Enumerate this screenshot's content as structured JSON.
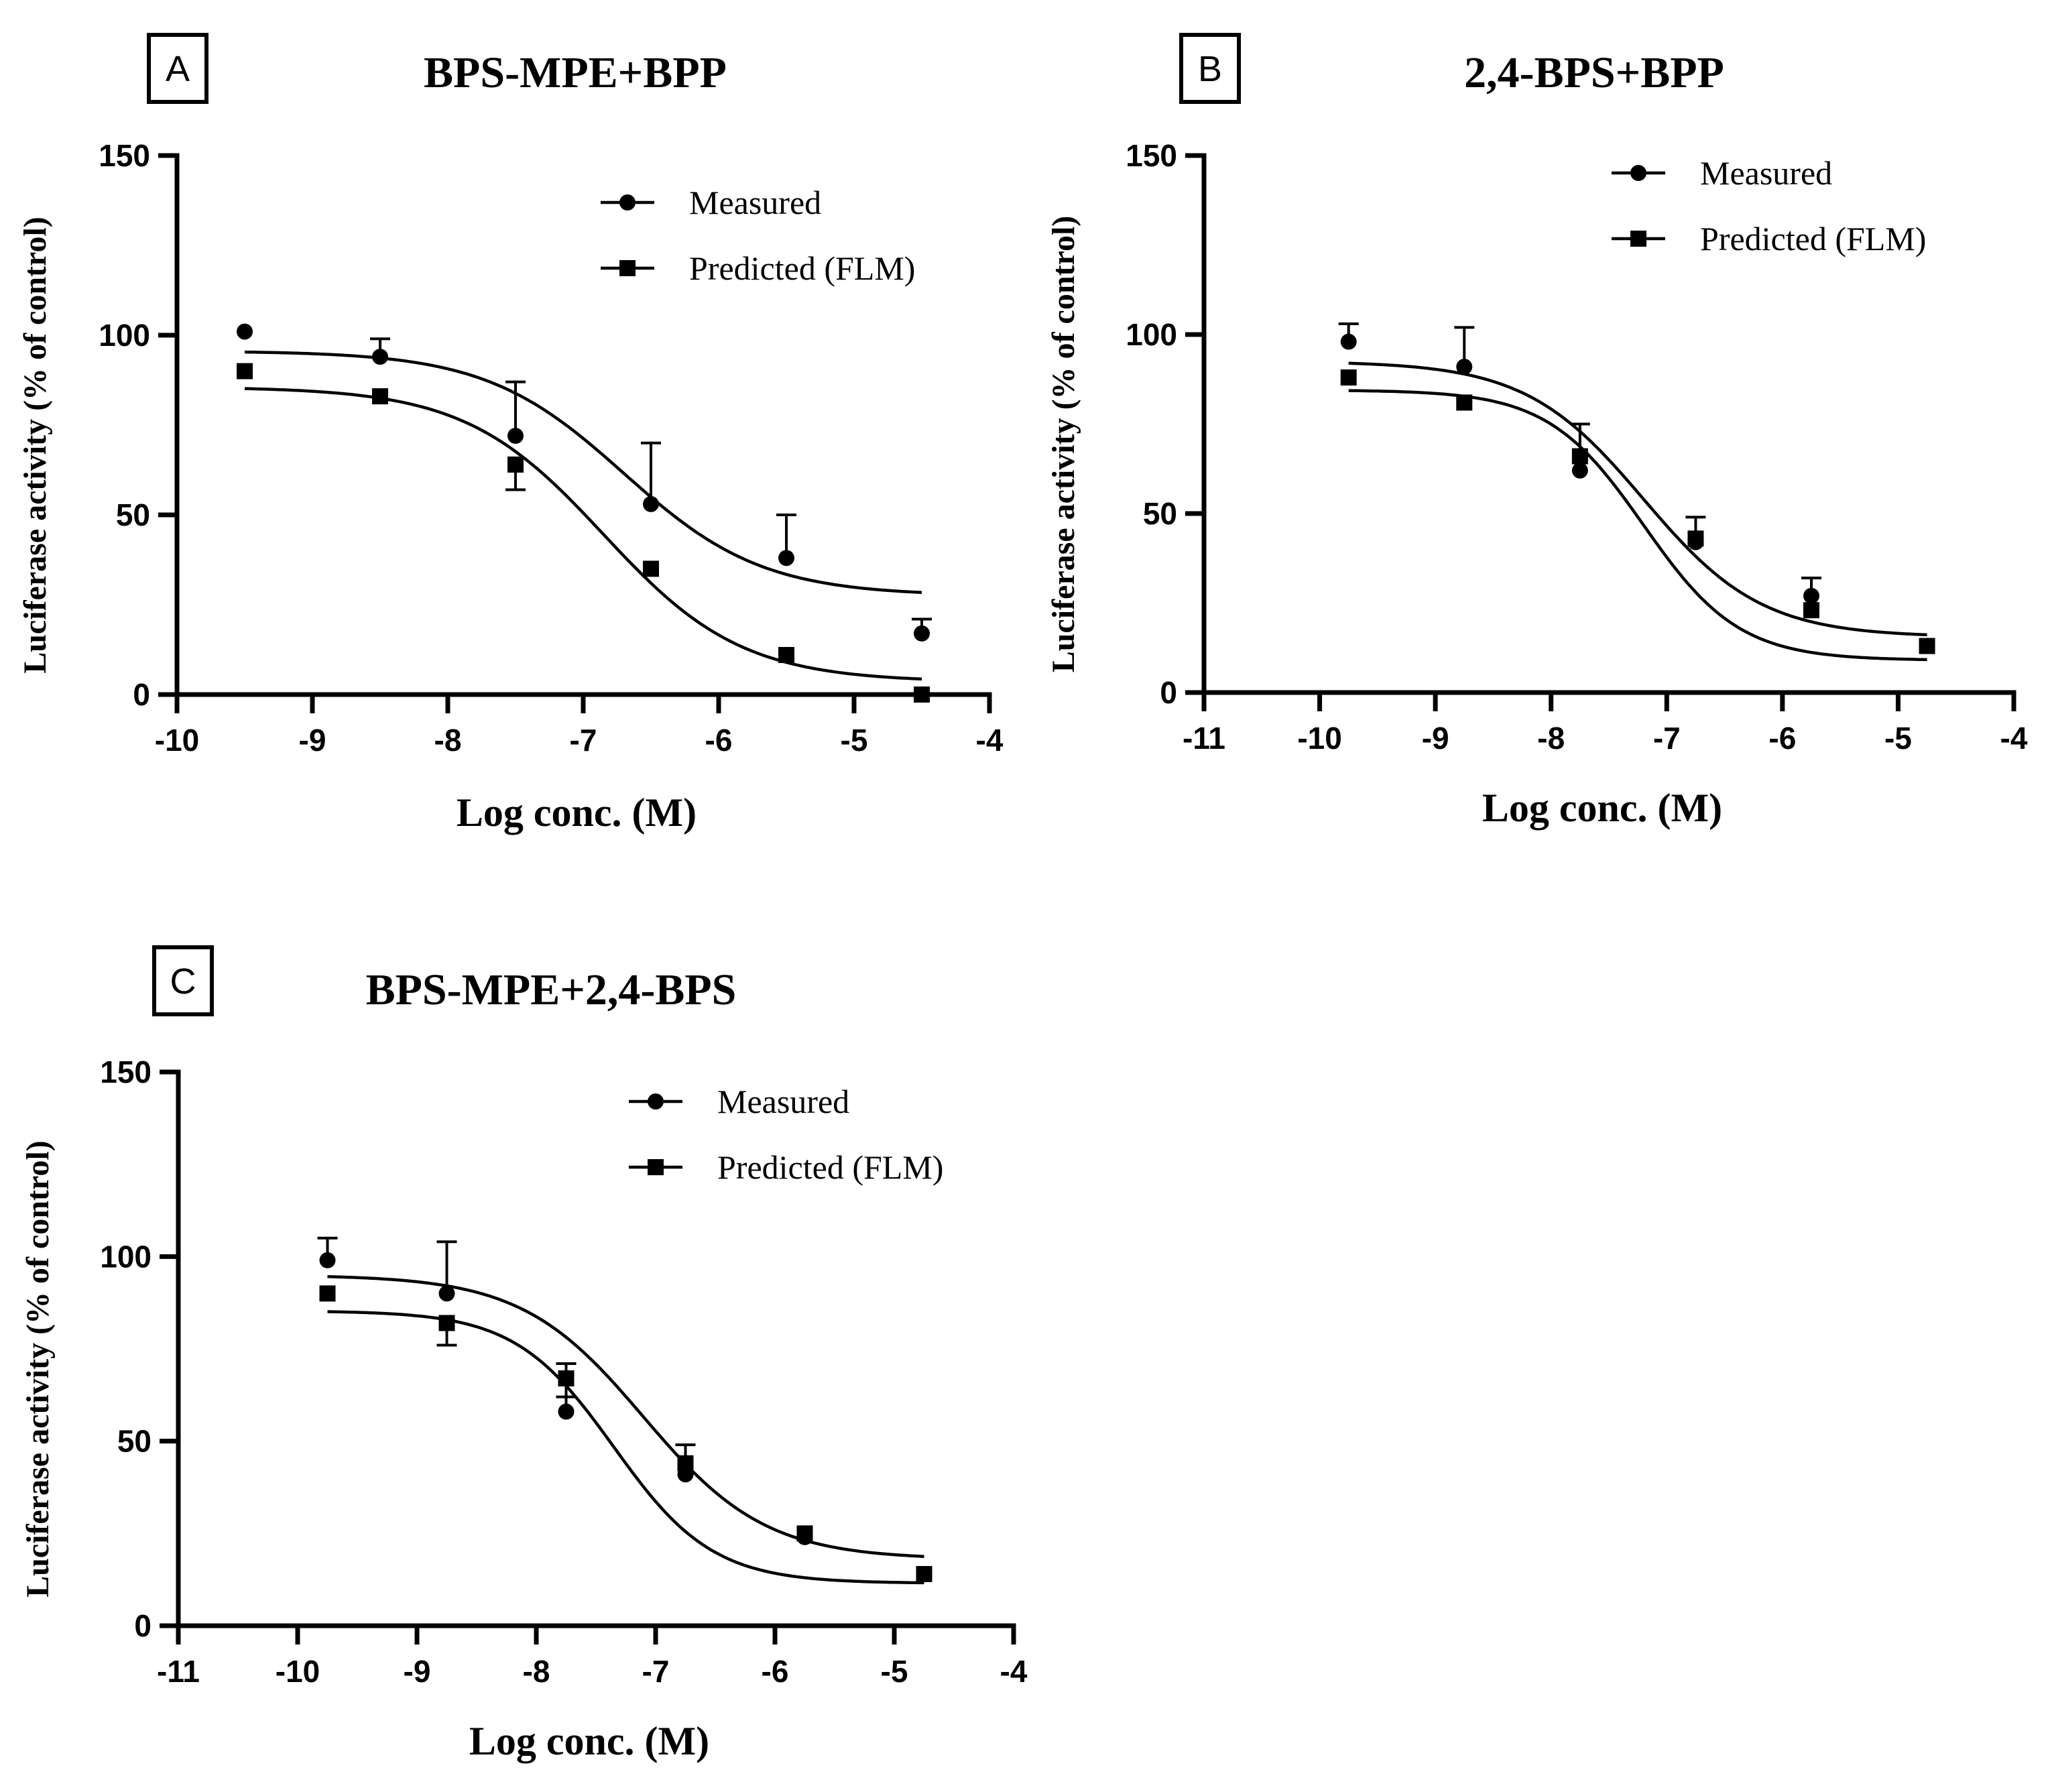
{
  "legend": {
    "measured": "Measured",
    "predicted": "Predicted (FLM)"
  },
  "chart_data": [
    {
      "type": "scatter",
      "panel_label": "A",
      "title": "BPS-MPE+BPP",
      "xlabel": "Log conc. (M)",
      "ylabel": "Luciferase activity (% of control)",
      "xlim": [
        -10,
        -4
      ],
      "ylim": [
        0,
        150
      ],
      "xticks": [
        -10,
        -9,
        -8,
        -7,
        -6,
        -5,
        -4
      ],
      "yticks": [
        0,
        50,
        100,
        150
      ],
      "legend_position": "top-right",
      "series": [
        {
          "name": "Measured",
          "marker": "circle",
          "x": [
            -9.5,
            -8.5,
            -7.5,
            -6.5,
            -5.5,
            -4.5
          ],
          "y": [
            101,
            94,
            72,
            53,
            38,
            17
          ],
          "error": [
            0,
            5,
            15,
            17,
            12,
            4
          ],
          "fit": {
            "bottom": 27.5,
            "top": 95.6,
            "logEC50": -6.7,
            "hill": 0.85,
            "xrange": [
              -9.5,
              -4.5
            ]
          }
        },
        {
          "name": "Predicted (FLM)",
          "marker": "square",
          "x": [
            -9.5,
            -8.5,
            -7.5,
            -6.5,
            -5.5,
            -4.5
          ],
          "y": [
            90,
            83,
            64,
            35,
            11,
            0
          ],
          "error": [
            0,
            0,
            7,
            0,
            0,
            0
          ],
          "fit": {
            "bottom": 3.5,
            "top": 85.6,
            "logEC50": -6.85,
            "hill": 0.85,
            "xrange": [
              -9.5,
              -4.5
            ]
          }
        }
      ]
    },
    {
      "type": "scatter",
      "panel_label": "B",
      "title": "2,4-BPS+BPP",
      "xlabel": "Log conc. (M)",
      "ylabel": "Luciferase activity (% of control)",
      "xlim": [
        -11,
        -4
      ],
      "ylim": [
        0,
        150
      ],
      "xticks": [
        -11,
        -10,
        -9,
        -8,
        -7,
        -6,
        -5,
        -4
      ],
      "yticks": [
        0,
        50,
        100,
        150
      ],
      "legend_position": "top-right",
      "series": [
        {
          "name": "Measured",
          "marker": "circle",
          "x": [
            -9.75,
            -8.75,
            -7.75,
            -6.75,
            -5.75,
            -4.75
          ],
          "y": [
            98,
            91,
            62,
            42,
            27,
            13
          ],
          "error": [
            5,
            11,
            13,
            7,
            5,
            0
          ],
          "fit": {
            "bottom": 15.5,
            "top": 92.5,
            "logEC50": -7.2,
            "hill": 0.85,
            "xrange": [
              -9.75,
              -4.75
            ]
          }
        },
        {
          "name": "Predicted (FLM)",
          "marker": "square",
          "x": [
            -9.75,
            -8.75,
            -7.75,
            -6.75,
            -5.75,
            -4.75
          ],
          "y": [
            88,
            81,
            66,
            43,
            23,
            13
          ],
          "error": [
            0,
            0,
            0,
            0,
            0,
            0
          ],
          "fit": {
            "bottom": 9,
            "top": 84.5,
            "logEC50": -7.2,
            "hill": 1.05,
            "xrange": [
              -9.75,
              -4.75
            ]
          }
        }
      ]
    },
    {
      "type": "scatter",
      "panel_label": "C",
      "title": "BPS-MPE+2,4-BPS",
      "xlabel": "Log conc. (M)",
      "ylabel": "Luciferase activity (% of control)",
      "xlim": [
        -11,
        -4
      ],
      "ylim": [
        0,
        150
      ],
      "xticks": [
        -11,
        -10,
        -9,
        -8,
        -7,
        -6,
        -5,
        -4
      ],
      "yticks": [
        0,
        50,
        100,
        150
      ],
      "legend_position": "top-right",
      "series": [
        {
          "name": "Measured",
          "marker": "circle",
          "x": [
            -9.75,
            -8.75,
            -7.75,
            -6.75,
            -5.75,
            -4.75
          ],
          "y": [
            99,
            90,
            58,
            41,
            24,
            14
          ],
          "error": [
            6,
            14,
            13,
            8,
            0,
            0
          ],
          "fit": {
            "bottom": 18,
            "top": 95,
            "logEC50": -7.1,
            "hill": 0.85,
            "xrange": [
              -9.75,
              -4.75
            ]
          }
        },
        {
          "name": "Predicted (FLM)",
          "marker": "square",
          "x": [
            -9.75,
            -8.75,
            -7.75,
            -6.75,
            -5.75,
            -4.75
          ],
          "y": [
            90,
            82,
            67,
            44,
            25,
            14
          ],
          "error": [
            0,
            6,
            5,
            0,
            0,
            0
          ],
          "fit": {
            "bottom": 11.5,
            "top": 85.3,
            "logEC50": -7.35,
            "hill": 1.05,
            "xrange": [
              -9.75,
              -4.75
            ]
          }
        }
      ]
    }
  ]
}
